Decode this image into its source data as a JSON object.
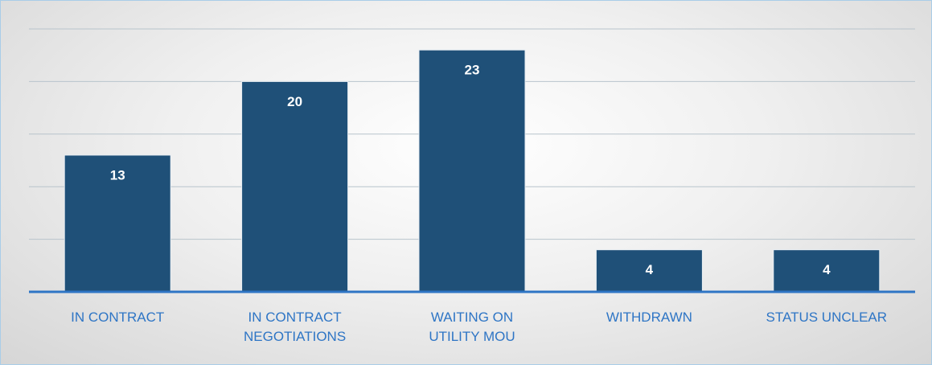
{
  "chart_data": {
    "type": "bar",
    "categories": [
      "IN CONTRACT",
      "IN CONTRACT NEGOTIATIONS",
      "WAITING ON UTILITY MOU",
      "WITHDRAWN",
      "STATUS UNCLEAR"
    ],
    "values": [
      13,
      20,
      23,
      4,
      4
    ],
    "color": "#1f5078",
    "ylim": [
      0,
      25
    ],
    "yticks": [
      0,
      5,
      10,
      15,
      20,
      25
    ],
    "grid": true
  }
}
